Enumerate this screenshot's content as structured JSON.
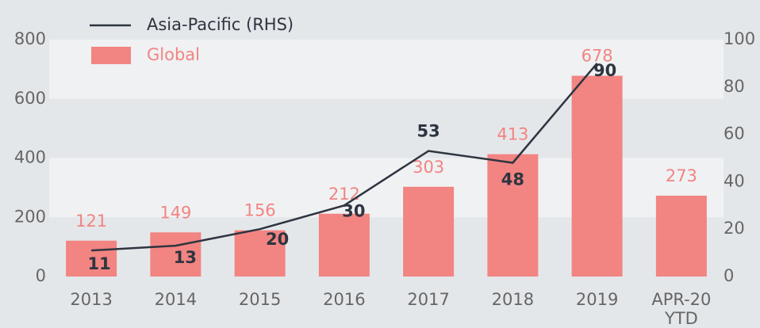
{
  "chart_data": {
    "type": "bar",
    "categories": [
      "2013",
      "2014",
      "2015",
      "2016",
      "2017",
      "2018",
      "2019",
      "APR-20 YTD"
    ],
    "series": [
      {
        "name": "Asia-Pacific (RHS)",
        "type": "line",
        "axis": "y2",
        "color": "#2d3540",
        "values": [
          11,
          13,
          20,
          30,
          53,
          48,
          90,
          null
        ]
      },
      {
        "name": "Global",
        "type": "bar",
        "color": "#f28482",
        "values": [
          121,
          149,
          156,
          212,
          303,
          413,
          678,
          273
        ]
      }
    ],
    "ylim": [
      0,
      800
    ],
    "yticks": [
      0,
      200,
      400,
      600,
      800
    ],
    "y2lim": [
      0,
      100
    ],
    "y2ticks": [
      0,
      20,
      40,
      60,
      80,
      100
    ],
    "grid": true,
    "legend": "top-left"
  }
}
